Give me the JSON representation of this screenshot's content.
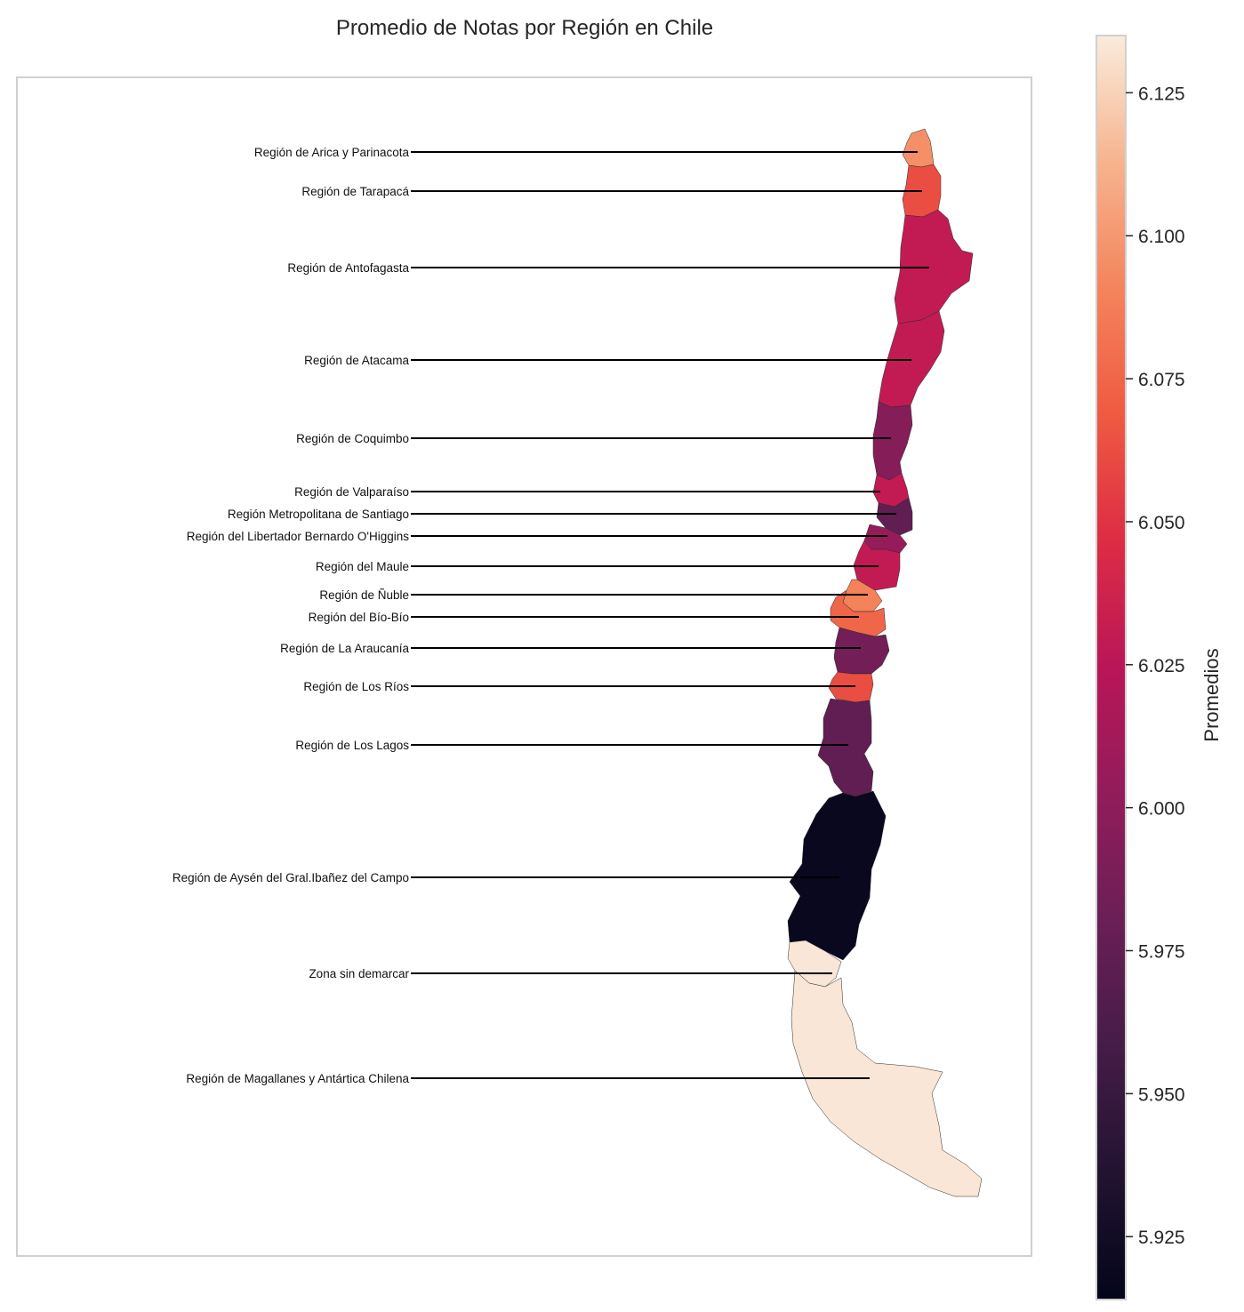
{
  "title": "Promedio de Notas por Región en Chile",
  "colorbar": {
    "label": "Promedios",
    "ticks": [
      "6.125",
      "6.100",
      "6.075",
      "6.050",
      "6.025",
      "6.000",
      "5.975",
      "5.950",
      "5.925"
    ],
    "min": 5.914,
    "max": 6.135,
    "colormap": "rocket"
  },
  "chart_data": {
    "type": "choropleth",
    "title": "Promedio de Notas por Región en Chile",
    "value_label": "Promedios",
    "regions": [
      {
        "name": "Región de Arica y Parinacota",
        "value": 6.096
      },
      {
        "name": "Región de Tarapacá",
        "value": 6.063
      },
      {
        "name": "Región de Antofagasta",
        "value": 6.03
      },
      {
        "name": "Región de Atacama",
        "value": 6.03
      },
      {
        "name": "Región de Coquimbo",
        "value": 5.995
      },
      {
        "name": "Región de Valparaíso",
        "value": 6.03
      },
      {
        "name": "Región Metropolitana de Santiago",
        "value": 5.975
      },
      {
        "name": "Región del Libertador Bernardo O'Higgins",
        "value": 6.005
      },
      {
        "name": "Región del Maule",
        "value": 6.03
      },
      {
        "name": "Región de Ñuble",
        "value": 6.09
      },
      {
        "name": "Región del Bío-Bío",
        "value": 6.075
      },
      {
        "name": "Región de La Araucanía",
        "value": 5.985
      },
      {
        "name": "Región de Los Ríos",
        "value": 6.063
      },
      {
        "name": "Región de Los Lagos",
        "value": 5.975
      },
      {
        "name": "Región de Aysén del Gral.Ibañez del Campo",
        "value": 5.918
      },
      {
        "name": "Zona sin demarcar",
        "value": 6.133
      },
      {
        "name": "Región de Magallanes y Antártica Chilena",
        "value": 6.133
      }
    ]
  }
}
